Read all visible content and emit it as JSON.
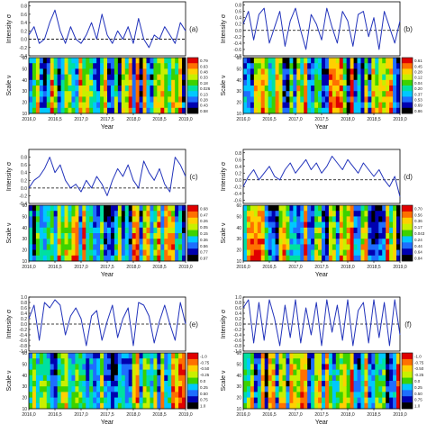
{
  "chart_data": [
    {
      "type": "line+heatmap",
      "panel_label": "(a)",
      "xlabel": "Year",
      "ylabel_top": "Intensity σ",
      "ylabel_bottom": "Scale ν",
      "xlim": [
        2016.0,
        2019.0
      ],
      "x_ticks": [
        "2016,0",
        "2016,5",
        "2017,0",
        "2017,5",
        "2018,0",
        "2018,5",
        "2019,0"
      ],
      "intensity": {
        "ylim": [
          -0.4,
          0.9
        ],
        "y_ticks": [
          "0.8",
          "0.6",
          "0.4",
          "0.2",
          "0.0",
          "-0.2",
          "-0.4"
        ],
        "dashed_level": 0.0,
        "x": [
          2016.0,
          2016.1,
          2016.2,
          2016.3,
          2016.4,
          2016.5,
          2016.6,
          2016.7,
          2016.8,
          2016.9,
          2017.0,
          2017.1,
          2017.2,
          2017.3,
          2017.4,
          2017.5,
          2017.6,
          2017.7,
          2017.8,
          2017.9,
          2018.0,
          2018.1,
          2018.2,
          2018.3,
          2018.4,
          2018.5,
          2018.6,
          2018.7,
          2018.8,
          2018.9,
          2019.0
        ],
        "y": [
          0.1,
          0.3,
          -0.1,
          0.0,
          0.4,
          0.7,
          0.2,
          -0.1,
          0.3,
          0.0,
          -0.1,
          0.1,
          0.4,
          0.0,
          0.6,
          0.1,
          -0.1,
          0.2,
          0.0,
          0.3,
          -0.1,
          0.5,
          0.0,
          -0.2,
          0.1,
          0.0,
          0.3,
          0.1,
          -0.1,
          0.4,
          0.2
        ]
      },
      "scale": {
        "ylim": [
          10,
          60
        ],
        "y_ticks": [
          "60",
          "50",
          "40",
          "30",
          "20",
          "10"
        ],
        "colorbar": [
          "0.79",
          "0.63",
          "0.48",
          "0.33",
          "0.18",
          "0.026",
          "0.13",
          "0.28",
          "0.43",
          "0.58"
        ]
      }
    },
    {
      "type": "line+heatmap",
      "panel_label": "(b)",
      "xlabel": "Year",
      "ylabel_top": "Intensity σ",
      "ylabel_bottom": "Scale ν",
      "xlim": [
        2016.0,
        2019.0
      ],
      "x_ticks": [
        "2016,0",
        "2016,5",
        "2017,0",
        "2017,5",
        "2018,0",
        "2018,5",
        "2019,0"
      ],
      "intensity": {
        "ylim": [
          -0.8,
          0.9
        ],
        "y_ticks": [
          "0.8",
          "0.6",
          "0.4",
          "0.2",
          "0.0",
          "-0.2",
          "-0.4",
          "-0.6",
          "-0.8"
        ],
        "dashed_level": 0.0,
        "x": [
          2016.0,
          2016.1,
          2016.2,
          2016.3,
          2016.4,
          2016.5,
          2016.6,
          2016.7,
          2016.8,
          2016.9,
          2017.0,
          2017.1,
          2017.2,
          2017.3,
          2017.4,
          2017.5,
          2017.6,
          2017.7,
          2017.8,
          2017.9,
          2018.0,
          2018.1,
          2018.2,
          2018.3,
          2018.4,
          2018.5,
          2018.6,
          2018.7,
          2018.8,
          2018.9,
          2019.0
        ],
        "y": [
          0.2,
          0.6,
          -0.3,
          0.5,
          0.7,
          -0.4,
          0.1,
          0.6,
          -0.5,
          0.3,
          0.7,
          0.0,
          -0.6,
          0.5,
          0.2,
          -0.3,
          0.7,
          0.1,
          -0.4,
          0.6,
          0.3,
          -0.5,
          0.5,
          0.6,
          -0.2,
          0.4,
          -0.6,
          0.6,
          0.1,
          -0.4,
          0.3
        ]
      },
      "scale": {
        "ylim": [
          10,
          60
        ],
        "y_ticks": [
          "60",
          "50",
          "40",
          "30",
          "20",
          "10"
        ],
        "colorbar": [
          "0.61",
          "0.45",
          "0.28",
          "0.12",
          "0.04",
          "0.20",
          "0.37",
          "0.53",
          "0.69",
          "0.86"
        ]
      }
    },
    {
      "type": "line+heatmap",
      "panel_label": "(c)",
      "xlabel": "Year",
      "ylabel_top": "Intensity σ",
      "ylabel_bottom": "Scale ν",
      "xlim": [
        2016.0,
        2019.0
      ],
      "x_ticks": [
        "2016,0",
        "2016,5",
        "2017,0",
        "2017,5",
        "2018,0",
        "2018,5",
        "2019,0"
      ],
      "intensity": {
        "ylim": [
          -0.4,
          1.0
        ],
        "y_ticks": [
          "0.8",
          "0.6",
          "0.4",
          "0.2",
          "0.0",
          "-0.2",
          "-0.4"
        ],
        "dashed_level": 0.0,
        "x": [
          2016.0,
          2016.1,
          2016.2,
          2016.3,
          2016.4,
          2016.5,
          2016.6,
          2016.7,
          2016.8,
          2016.9,
          2017.0,
          2017.1,
          2017.2,
          2017.3,
          2017.4,
          2017.5,
          2017.6,
          2017.7,
          2017.8,
          2017.9,
          2018.0,
          2018.1,
          2018.2,
          2018.3,
          2018.4,
          2018.5,
          2018.6,
          2018.7,
          2018.8,
          2018.9,
          2019.0
        ],
        "y": [
          0.0,
          0.2,
          0.3,
          0.5,
          0.8,
          0.4,
          0.6,
          0.2,
          0.0,
          0.1,
          -0.1,
          0.2,
          0.0,
          0.3,
          0.1,
          -0.2,
          0.2,
          0.5,
          0.3,
          0.6,
          0.2,
          0.0,
          0.7,
          0.4,
          0.2,
          0.5,
          0.1,
          -0.1,
          0.8,
          0.6,
          0.3
        ]
      },
      "scale": {
        "ylim": [
          10,
          60
        ],
        "y_ticks": [
          "60",
          "50",
          "40",
          "30",
          "20",
          "10"
        ],
        "colorbar": [
          "0.68",
          "0.47",
          "0.26",
          "0.05",
          "0.15",
          "0.36",
          "0.56",
          "0.77",
          "0.97"
        ]
      }
    },
    {
      "type": "line+heatmap",
      "panel_label": "(d)",
      "xlabel": "Year",
      "ylabel_top": "Intensity σ",
      "ylabel_bottom": "Scale ν",
      "xlim": [
        2016.0,
        2019.0
      ],
      "x_ticks": [
        "2016,0",
        "2016,5",
        "2017,0",
        "2017,5",
        "2018,0",
        "2018,5",
        "2019,0"
      ],
      "intensity": {
        "ylim": [
          -0.7,
          0.9
        ],
        "y_ticks": [
          "0.8",
          "0.6",
          "0.4",
          "0.2",
          "0.0",
          "-0.2",
          "-0.4",
          "-0.6"
        ],
        "dashed_level": 0.0,
        "x": [
          2016.0,
          2016.1,
          2016.2,
          2016.3,
          2016.4,
          2016.5,
          2016.6,
          2016.7,
          2016.8,
          2016.9,
          2017.0,
          2017.1,
          2017.2,
          2017.3,
          2017.4,
          2017.5,
          2017.6,
          2017.7,
          2017.8,
          2017.9,
          2018.0,
          2018.1,
          2018.2,
          2018.3,
          2018.4,
          2018.5,
          2018.6,
          2018.7,
          2018.8,
          2018.9,
          2019.0
        ],
        "y": [
          -0.2,
          0.1,
          0.3,
          0.0,
          0.2,
          0.4,
          0.1,
          0.0,
          0.3,
          0.5,
          0.2,
          0.4,
          0.6,
          0.3,
          0.5,
          0.2,
          0.4,
          0.7,
          0.5,
          0.3,
          0.6,
          0.4,
          0.2,
          0.5,
          0.3,
          0.1,
          0.3,
          0.0,
          -0.2,
          0.1,
          -0.5
        ]
      },
      "scale": {
        "ylim": [
          10,
          60
        ],
        "y_ticks": [
          "60",
          "50",
          "40",
          "30",
          "20",
          "10"
        ],
        "colorbar": [
          "0.70",
          "0.56",
          "0.36",
          "0.17",
          "0.043",
          "0.24",
          "0.44",
          "0.64",
          "0.84"
        ]
      }
    },
    {
      "type": "line+heatmap",
      "panel_label": "(e)",
      "xlabel": "Year",
      "ylabel_top": "Intensity σ",
      "ylabel_bottom": "Scale ν",
      "xlim": [
        2016.0,
        2019.0
      ],
      "x_ticks": [
        "2016,0",
        "2016,5",
        "2017,0",
        "2017,5",
        "2018,0",
        "2018,5",
        "2019,0"
      ],
      "intensity": {
        "ylim": [
          -1.0,
          1.0
        ],
        "y_ticks": [
          "1.0",
          "0.8",
          "0.6",
          "0.4",
          "0.2",
          "0.0",
          "-0.2",
          "-0.4",
          "-0.6",
          "-0.8",
          "-1.0"
        ],
        "dashed_level": 0.0,
        "x": [
          2016.0,
          2016.1,
          2016.2,
          2016.3,
          2016.4,
          2016.5,
          2016.6,
          2016.7,
          2016.8,
          2016.9,
          2017.0,
          2017.1,
          2017.2,
          2017.3,
          2017.4,
          2017.5,
          2017.6,
          2017.7,
          2017.8,
          2017.9,
          2018.0,
          2018.1,
          2018.2,
          2018.3,
          2018.4,
          2018.5,
          2018.6,
          2018.7,
          2018.8,
          2018.9,
          2019.0
        ],
        "y": [
          0.2,
          0.7,
          -0.6,
          0.8,
          0.6,
          0.9,
          0.7,
          -0.4,
          0.3,
          0.6,
          0.2,
          -0.8,
          0.3,
          0.5,
          -0.6,
          0.1,
          0.7,
          -0.5,
          0.2,
          0.6,
          -0.8,
          0.8,
          0.7,
          0.3,
          -0.7,
          0.1,
          0.7,
          0.0,
          -0.6,
          0.8,
          0.0
        ]
      },
      "scale": {
        "ylim": [
          10,
          60
        ],
        "y_ticks": [
          "60",
          "50",
          "40",
          "30",
          "20",
          "10"
        ],
        "colorbar": [
          "-1.0",
          "-0.75",
          "-0.50",
          "-0.25",
          "0.0",
          "0.25",
          "0.50",
          "0.75",
          "1.0"
        ]
      }
    },
    {
      "type": "line+heatmap",
      "panel_label": "(f)",
      "xlabel": "Year",
      "ylabel_top": "Intensity σ",
      "ylabel_bottom": "Scale ν",
      "xlim": [
        2016.0,
        2019.0
      ],
      "x_ticks": [
        "2016,0",
        "2016,5",
        "2017,0",
        "2017,5",
        "2018,0",
        "2018,5",
        "2019,0"
      ],
      "intensity": {
        "ylim": [
          -1.0,
          1.0
        ],
        "y_ticks": [
          "1.0",
          "0.8",
          "0.6",
          "0.4",
          "0.2",
          "0.0",
          "-0.2",
          "-0.4",
          "-0.6",
          "-0.8",
          "-1.0"
        ],
        "dashed_level": 0.0,
        "x": [
          2016.0,
          2016.1,
          2016.2,
          2016.3,
          2016.4,
          2016.5,
          2016.6,
          2016.7,
          2016.8,
          2016.9,
          2017.0,
          2017.1,
          2017.2,
          2017.3,
          2017.4,
          2017.5,
          2017.6,
          2017.7,
          2017.8,
          2017.9,
          2018.0,
          2018.1,
          2018.2,
          2018.3,
          2018.4,
          2018.5,
          2018.6,
          2018.7,
          2018.8,
          2018.9,
          2019.0
        ],
        "y": [
          0.6,
          0.9,
          -0.7,
          0.8,
          -0.6,
          0.9,
          0.2,
          -0.8,
          0.7,
          -0.5,
          0.9,
          -0.7,
          0.6,
          -0.4,
          0.8,
          -0.8,
          0.9,
          -0.3,
          0.7,
          -0.6,
          0.9,
          -0.8,
          0.5,
          0.8,
          -0.7,
          0.9,
          -0.5,
          0.8,
          -0.8,
          0.9,
          -0.4
        ]
      },
      "scale": {
        "ylim": [
          10,
          60
        ],
        "y_ticks": [
          "60",
          "50",
          "40",
          "30",
          "20",
          "10"
        ],
        "colorbar": [
          "-1.0",
          "-0.75",
          "-0.50",
          "-0.25",
          "0.0",
          "0.25",
          "0.50",
          "0.75",
          "1.0"
        ]
      }
    }
  ],
  "colors": {
    "line": "#2233bb",
    "colormap": [
      "#000000",
      "#0000b0",
      "#1e6eff",
      "#00c8ff",
      "#00e0a0",
      "#3cd200",
      "#c8f000",
      "#ffd000",
      "#ff7000",
      "#e00000"
    ]
  }
}
